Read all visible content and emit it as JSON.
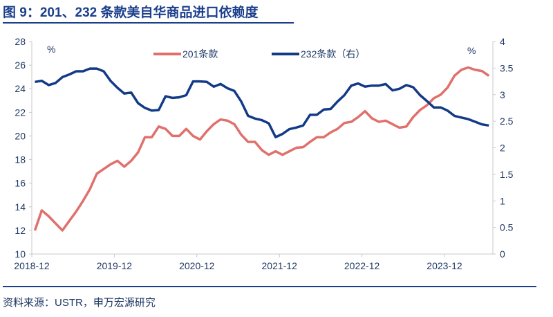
{
  "title": "图 9：201、232 条款美自华商品进口依赖度",
  "source": "资料来源：USTR，申万宏源研究",
  "chart_data": {
    "type": "line",
    "title": "图 9：201、232 条款美自华商品进口依赖度",
    "left_unit": "%",
    "right_unit": "%",
    "ylim_left": [
      10,
      28
    ],
    "yticks_left": [
      "10",
      "12",
      "14",
      "16",
      "18",
      "20",
      "22",
      "24",
      "26",
      "28"
    ],
    "ylim_right": [
      0,
      4
    ],
    "yticks_right": [
      "0",
      "0.5",
      "1",
      "1.5",
      "2",
      "2.5",
      "3",
      "3.5",
      "4"
    ],
    "xtick_labels": [
      "2018-12",
      "2019-12",
      "2020-12",
      "2021-12",
      "2022-12",
      "2023-12"
    ],
    "grid": false,
    "legend_position": "top-center",
    "x": [
      "2019-01",
      "2019-02",
      "2019-03",
      "2019-04",
      "2019-05",
      "2019-06",
      "2019-07",
      "2019-08",
      "2019-09",
      "2019-10",
      "2019-11",
      "2019-12",
      "2020-01",
      "2020-02",
      "2020-03",
      "2020-04",
      "2020-05",
      "2020-06",
      "2020-07",
      "2020-08",
      "2020-09",
      "2020-10",
      "2020-11",
      "2020-12",
      "2021-01",
      "2021-02",
      "2021-03",
      "2021-04",
      "2021-05",
      "2021-06",
      "2021-07",
      "2021-08",
      "2021-09",
      "2021-10",
      "2021-11",
      "2021-12",
      "2022-01",
      "2022-02",
      "2022-03",
      "2022-04",
      "2022-05",
      "2022-06",
      "2022-07",
      "2022-08",
      "2022-09",
      "2022-10",
      "2022-11",
      "2022-12",
      "2023-01",
      "2023-02",
      "2023-03",
      "2023-04",
      "2023-05",
      "2023-06",
      "2023-07",
      "2023-08",
      "2023-09",
      "2023-10",
      "2023-11",
      "2023-12",
      "2024-01",
      "2024-02",
      "2024-03",
      "2024-04",
      "2024-05",
      "2024-06",
      "2024-07"
    ],
    "series": [
      {
        "name": "201条款",
        "axis": "left",
        "color": "#e0706b",
        "values": [
          12.0,
          13.7,
          13.2,
          12.6,
          12.0,
          12.8,
          13.6,
          14.5,
          15.5,
          16.8,
          17.2,
          17.6,
          17.9,
          17.4,
          17.9,
          18.6,
          19.9,
          19.9,
          20.8,
          20.6,
          20.0,
          20.0,
          20.6,
          20.0,
          19.7,
          20.4,
          21.0,
          21.4,
          21.3,
          21.0,
          20.1,
          19.5,
          19.5,
          18.8,
          18.4,
          18.7,
          18.4,
          18.7,
          19.0,
          19.05,
          19.5,
          19.9,
          19.9,
          20.3,
          20.6,
          21.1,
          21.2,
          21.6,
          22.1,
          21.5,
          21.2,
          21.3,
          21.0,
          20.7,
          20.8,
          21.6,
          22.2,
          22.6,
          23.2,
          23.5,
          24.1,
          25.1,
          25.6,
          25.8,
          25.6,
          25.5,
          25.1
        ]
      },
      {
        "name": "232条款（右）",
        "axis": "right",
        "color": "#123a86",
        "values": [
          3.24,
          3.26,
          3.18,
          3.22,
          3.33,
          3.38,
          3.44,
          3.44,
          3.49,
          3.49,
          3.44,
          3.26,
          3.13,
          3.02,
          3.04,
          2.84,
          2.75,
          2.7,
          2.71,
          2.97,
          2.94,
          2.95,
          2.99,
          3.25,
          3.25,
          3.24,
          3.15,
          3.2,
          3.12,
          3.07,
          2.87,
          2.6,
          2.55,
          2.52,
          2.46,
          2.2,
          2.26,
          2.35,
          2.38,
          2.42,
          2.62,
          2.62,
          2.72,
          2.73,
          2.87,
          2.99,
          3.17,
          3.21,
          3.15,
          3.17,
          3.17,
          3.2,
          3.08,
          3.11,
          3.18,
          3.14,
          2.99,
          2.88,
          2.76,
          2.76,
          2.7,
          2.6,
          2.57,
          2.54,
          2.49,
          2.44,
          2.42
        ]
      }
    ]
  }
}
